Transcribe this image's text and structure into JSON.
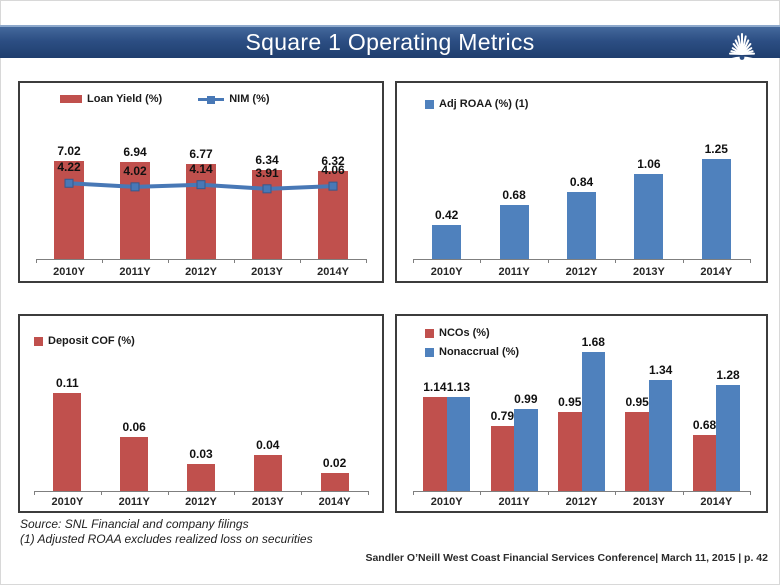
{
  "header": {
    "title": "Square 1 Operating Metrics",
    "logo": "starburst-logo"
  },
  "colors": {
    "bar_red": "#C0504D",
    "bar_blue": "#4F81BD",
    "line_blue": "#4878B6",
    "panel_border": "#3c3c3c",
    "header_top": "#44699c",
    "header_bottom": "#1f3e6e"
  },
  "chart_data": [
    {
      "id": "loan-yield-nim",
      "type": "bar",
      "categories": [
        "2010Y",
        "2011Y",
        "2012Y",
        "2013Y",
        "2014Y"
      ],
      "series": [
        {
          "name": "Loan Yield (%)",
          "kind": "bar",
          "swatch": "rect",
          "color": "#C0504D",
          "values": [
            7.02,
            6.94,
            6.77,
            6.34,
            6.32
          ],
          "ylim": [
            0,
            10
          ]
        },
        {
          "name": "NIM (%)",
          "kind": "line",
          "swatch": "line",
          "color": "#4878B6",
          "values": [
            4.22,
            4.02,
            4.14,
            3.91,
            4.06
          ],
          "ylim": [
            0,
            7.8
          ]
        }
      ],
      "legend_position": "top-left",
      "grid": false,
      "data_labels": true
    },
    {
      "id": "adj-roaa",
      "type": "bar",
      "categories": [
        "2010Y",
        "2011Y",
        "2012Y",
        "2013Y",
        "2014Y"
      ],
      "series": [
        {
          "name": "Adj ROAA (%) (1)",
          "kind": "bar",
          "swatch": "square",
          "color": "#4F81BD",
          "values": [
            0.42,
            0.68,
            0.84,
            1.06,
            1.25
          ],
          "ylim": [
            0,
            1.7
          ]
        }
      ],
      "legend_position": "top-left",
      "grid": false,
      "data_labels": true
    },
    {
      "id": "deposit-cof",
      "type": "bar",
      "categories": [
        "2010Y",
        "2011Y",
        "2012Y",
        "2013Y",
        "2014Y"
      ],
      "series": [
        {
          "name": "Deposit COF (%)",
          "kind": "bar",
          "swatch": "square",
          "color": "#C0504D",
          "values": [
            0.11,
            0.06,
            0.03,
            0.04,
            0.02
          ],
          "ylim": [
            0,
            0.14
          ]
        }
      ],
      "legend_position": "top-left",
      "grid": false,
      "data_labels": true
    },
    {
      "id": "ncos-nonaccrual",
      "type": "bar",
      "categories": [
        "2010Y",
        "2011Y",
        "2012Y",
        "2013Y",
        "2014Y"
      ],
      "series": [
        {
          "name": "NCOs (%)",
          "kind": "bar",
          "swatch": "square",
          "color": "#C0504D",
          "values": [
            1.14,
            0.79,
            0.95,
            0.95,
            0.68
          ],
          "ylim": [
            0,
            1.8
          ]
        },
        {
          "name": "Nonaccrual (%)",
          "kind": "bar",
          "swatch": "square",
          "color": "#4F81BD",
          "values": [
            1.13,
            0.99,
            1.68,
            1.34,
            1.28
          ],
          "ylim": [
            0,
            1.8
          ]
        }
      ],
      "legend_position": "top-left",
      "grid": false,
      "data_labels": true
    }
  ],
  "footer": {
    "source_line1": "Source: SNL Financial and company filings",
    "source_line2": "(1) Adjusted ROAA excludes realized loss on securities",
    "conference": "Sandler O’Neill West Coast Financial Services Conference| March 11, 2015 | p. 42"
  }
}
